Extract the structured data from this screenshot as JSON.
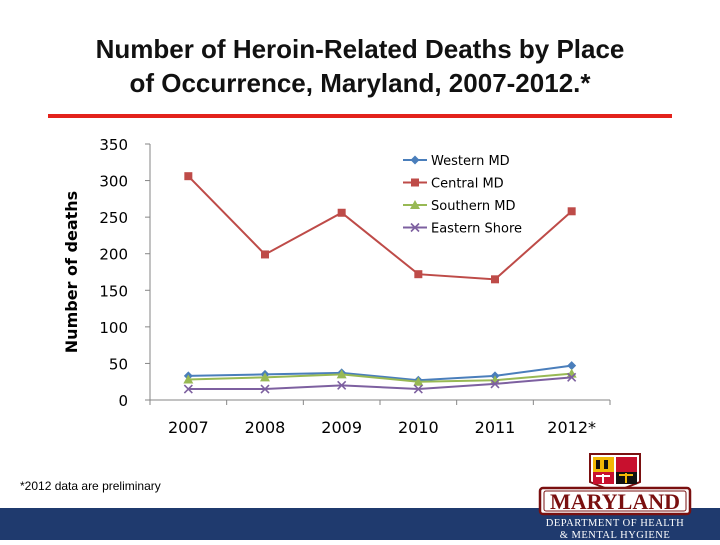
{
  "slide": {
    "title_line1": "Number of Heroin-Related Deaths by Place",
    "title_line2": "of Occurrence, Maryland, 2007-2012.*",
    "footnote": "*2012 data are preliminary"
  },
  "logo": {
    "name": "MARYLAND",
    "line1": "DEPARTMENT OF HEALTH",
    "line2": "& MENTAL HYGIENE"
  },
  "colors": {
    "title_rule": "#e3221c",
    "western": "#4a7ebb",
    "central": "#be4b48",
    "southern": "#98b954",
    "eastern": "#7d60a0",
    "bottom_bar": "#1f3a6e"
  },
  "chart_data": {
    "type": "line",
    "categories": [
      "2007",
      "2008",
      "2009",
      "2010",
      "2011",
      "2012*"
    ],
    "ylabel": "Number of deaths",
    "ylim": [
      0,
      350
    ],
    "yticks": [
      0,
      50,
      100,
      150,
      200,
      250,
      300,
      350
    ],
    "grid": false,
    "legend_position": "top-right",
    "series": [
      {
        "name": "Western MD",
        "marker": "diamond",
        "values": [
          33,
          35,
          37,
          27,
          33,
          47
        ]
      },
      {
        "name": "Central MD",
        "marker": "square",
        "values": [
          306,
          199,
          256,
          172,
          165,
          258
        ]
      },
      {
        "name": "Southern MD",
        "marker": "triangle",
        "values": [
          28,
          31,
          35,
          25,
          27,
          36
        ]
      },
      {
        "name": "Eastern Shore",
        "marker": "x",
        "values": [
          15,
          15,
          20,
          15,
          22,
          31
        ]
      }
    ]
  }
}
